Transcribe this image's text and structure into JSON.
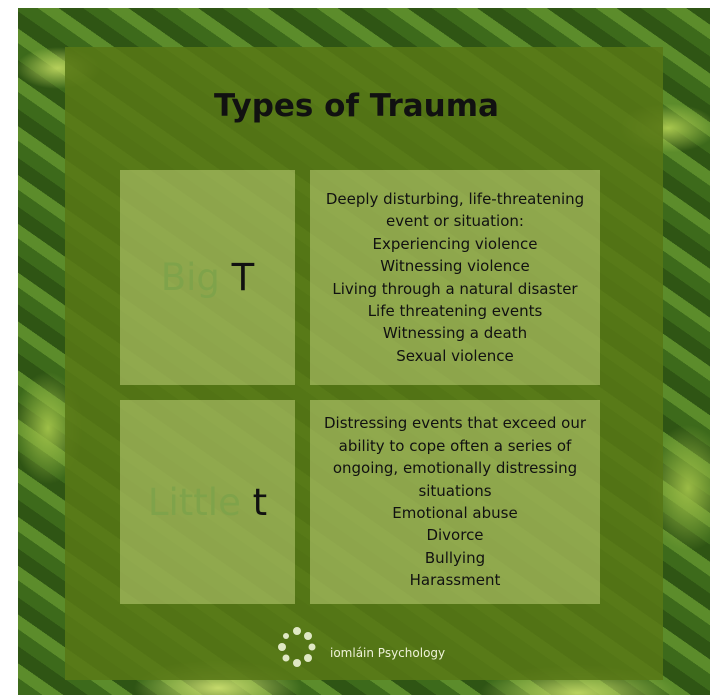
{
  "header": {
    "title": "Types of Trauma"
  },
  "rows": [
    {
      "term_light": "Big",
      "term_dark": "T",
      "lines": [
        "Deeply disturbing, life-threatening",
        "event or situation:",
        "Experiencing violence",
        "Witnessing violence",
        "Living through a natural disaster",
        "Life threatening events",
        "Witnessing a death",
        "Sexual violence"
      ]
    },
    {
      "term_light": "Little",
      "term_dark": "t",
      "lines": [
        "Distressing events that exceed our",
        "ability to cope often a series of",
        "ongoing, emotionally distressing",
        "situations",
        "Emotional abuse",
        "Divorce",
        "Bullying",
        "Harassment"
      ]
    }
  ],
  "footer": {
    "brand": "iomláin Psychology"
  }
}
